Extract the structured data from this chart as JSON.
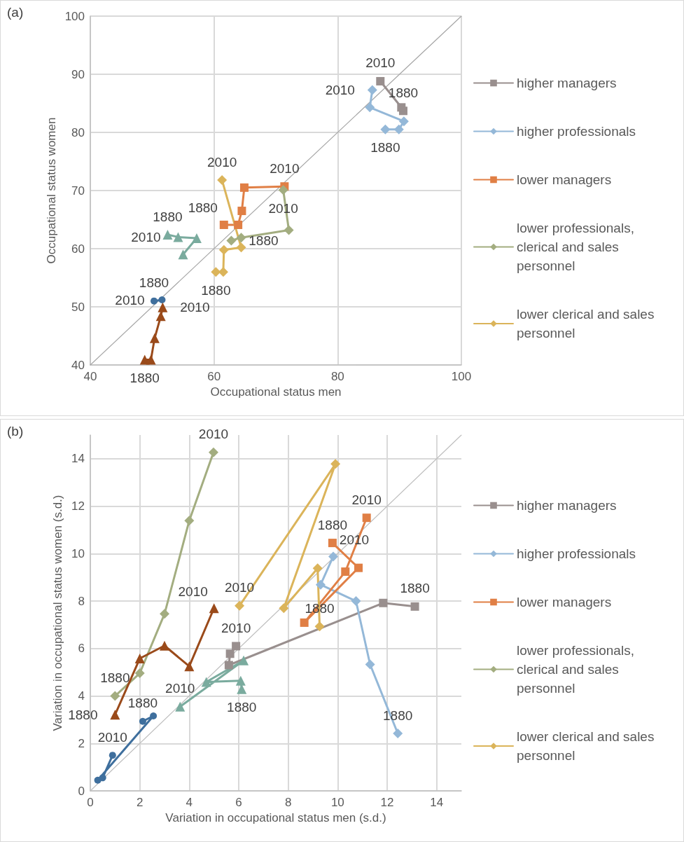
{
  "chart_data": [
    {
      "type": "line",
      "title": "(a)",
      "xlabel": "Occupational status men",
      "ylabel": "Occupational status women",
      "xlim": [
        40,
        100
      ],
      "ylim": [
        40,
        100
      ],
      "xticks": [
        40,
        60,
        80,
        100
      ],
      "yticks": [
        40,
        50,
        60,
        70,
        80,
        90,
        100
      ],
      "grid": true,
      "legend": "right",
      "series": [
        {
          "type": "line",
          "color": "#a6a6a6",
          "marker": "none",
          "x": [
            40,
            100
          ],
          "values": [
            40,
            100
          ]
        },
        {
          "name": "higher managers",
          "color": "#998f8e",
          "marker": "square",
          "x": [
            90.6,
            90.3,
            86.9
          ],
          "values": [
            83.7,
            84.3,
            88.8
          ]
        },
        {
          "name": "higher professionals",
          "color": "#94b8d8",
          "marker": "diamond",
          "x": [
            87.7,
            89.9,
            90.7,
            85.2,
            85.6
          ],
          "values": [
            80.5,
            80.5,
            81.9,
            84.3,
            87.3
          ]
        },
        {
          "name": "lower managers",
          "color": "#e07f45",
          "marker": "square",
          "x": [
            61.6,
            63.9,
            64.5,
            64.9,
            71.4
          ],
          "values": [
            64.1,
            64.1,
            66.5,
            70.5,
            70.7
          ]
        },
        {
          "name": "lower professionals, clerical and sales personnel",
          "color": "#a3ad80",
          "marker": "diamond",
          "x": [
            62.8,
            64.4,
            72.1,
            71.2
          ],
          "values": [
            61.4,
            61.9,
            63.2,
            70.1
          ]
        },
        {
          "name": "lower clerical and sales personnel",
          "color": "#dbb45a",
          "marker": "diamond",
          "x": [
            60.3,
            61.5,
            61.6,
            64.4,
            61.3
          ],
          "values": [
            56.0,
            56.0,
            59.8,
            60.2,
            71.8
          ]
        },
        {
          "color": "#3f6f9d",
          "marker": "circle",
          "x": [
            50.3,
            51.6
          ],
          "values": [
            51.0,
            51.2
          ]
        },
        {
          "color": "#7aab9e",
          "marker": "triangle",
          "x": [
            52.5,
            54.2,
            57.2,
            55.0
          ],
          "values": [
            62.4,
            62.0,
            61.8,
            59.0
          ]
        },
        {
          "color": "#9a4a1a",
          "marker": "triangle",
          "x": [
            48.8,
            49.8,
            50.4,
            51.4,
            51.7
          ],
          "values": [
            40.9,
            40.9,
            44.6,
            48.4,
            49.9
          ]
        }
      ],
      "annotations": [
        {
          "text": "1880",
          "x": 90.6,
          "y": 83.7
        },
        {
          "text": "2010",
          "x": 86.9,
          "y": 88.8
        },
        {
          "text": "1880",
          "x": 87.7,
          "y": 80.5
        },
        {
          "text": "2010",
          "x": 85.6,
          "y": 87.3
        },
        {
          "text": "1880",
          "x": 61.6,
          "y": 64.1
        },
        {
          "text": "2010",
          "x": 71.4,
          "y": 70.7
        },
        {
          "text": "1880",
          "x": 62.8,
          "y": 61.4
        },
        {
          "text": "2010",
          "x": 71.2,
          "y": 70.1
        },
        {
          "text": "1880",
          "x": 60.3,
          "y": 56.0
        },
        {
          "text": "2010",
          "x": 61.3,
          "y": 71.8
        },
        {
          "text": "1880",
          "x": 50.3,
          "y": 51.0
        },
        {
          "text": "2010",
          "x": 51.6,
          "y": 51.2
        },
        {
          "text": "1880",
          "x": 52.5,
          "y": 62.4
        },
        {
          "text": "2010",
          "x": 54.2,
          "y": 62.0
        },
        {
          "text": "1880",
          "x": 48.8,
          "y": 40.9
        },
        {
          "text": "2010",
          "x": 51.7,
          "y": 49.9
        }
      ]
    },
    {
      "type": "line",
      "title": "(b)",
      "xlabel": "Variation in occupational status men (s.d.)",
      "ylabel": "Variation in occupational status women (s.d.)",
      "xlim": [
        0,
        15
      ],
      "ylim": [
        0,
        15
      ],
      "xticks": [
        0,
        2,
        4,
        6,
        8,
        10,
        12,
        14
      ],
      "yticks": [
        0,
        2,
        4,
        6,
        8,
        10,
        12,
        14
      ],
      "grid": true,
      "legend": "right",
      "series": [
        {
          "type": "line",
          "color": "#bfbfbf",
          "marker": "none",
          "x": [
            0,
            15
          ],
          "values": [
            0,
            15
          ]
        },
        {
          "name": "higher managers",
          "color": "#998f8e",
          "marker": "square",
          "x": [
            13.12,
            11.84,
            5.6,
            5.65,
            5.89
          ],
          "values": [
            7.77,
            7.92,
            5.3,
            5.78,
            6.1
          ]
        },
        {
          "name": "higher professionals",
          "color": "#94b8d8",
          "marker": "diamond",
          "x": [
            12.43,
            11.31,
            10.74,
            9.31,
            9.82
          ],
          "values": [
            2.42,
            5.33,
            8.0,
            8.69,
            9.88
          ]
        },
        {
          "name": "lower managers",
          "color": "#e07f45",
          "marker": "square",
          "x": [
            9.79,
            10.84,
            8.65,
            10.31,
            11.17
          ],
          "values": [
            10.45,
            9.4,
            7.09,
            9.24,
            11.51
          ]
        },
        {
          "name": "lower professionals, clerical and sales personnel",
          "color": "#a3ad80",
          "marker": "diamond",
          "x": [
            1.0,
            2.0,
            3.0,
            4.0,
            4.98
          ],
          "values": [
            4.0,
            4.96,
            7.46,
            11.39,
            14.27
          ]
        },
        {
          "name": "lower clerical and sales personnel",
          "color": "#dbb45a",
          "marker": "diamond",
          "x": [
            9.27,
            9.19,
            7.82,
            9.91,
            6.03
          ],
          "values": [
            6.93,
            9.38,
            7.7,
            13.78,
            7.8
          ]
        },
        {
          "color": "#3f6f9d",
          "marker": "circle",
          "x": [
            2.12,
            2.55,
            0.3,
            0.5,
            0.9
          ],
          "values": [
            2.93,
            3.16,
            0.45,
            0.55,
            1.5
          ]
        },
        {
          "color": "#7aab9e",
          "marker": "triangle",
          "x": [
            6.12,
            6.08,
            4.69,
            6.2,
            3.63
          ],
          "values": [
            4.29,
            4.64,
            4.59,
            5.5,
            3.55
          ]
        },
        {
          "color": "#9a4a1a",
          "marker": "triangle",
          "x": [
            1.0,
            2.0,
            3.0,
            4.0,
            5.0
          ],
          "values": [
            3.21,
            5.58,
            6.12,
            5.25,
            7.7
          ]
        }
      ],
      "annotations": [
        {
          "text": "1880",
          "x": 13.12,
          "y": 7.77
        },
        {
          "text": "2010",
          "x": 5.89,
          "y": 6.1
        },
        {
          "text": "1880",
          "x": 12.43,
          "y": 2.42
        },
        {
          "text": "2010",
          "x": 9.82,
          "y": 9.88
        },
        {
          "text": "1880",
          "x": 9.79,
          "y": 10.45
        },
        {
          "text": "2010",
          "x": 11.17,
          "y": 11.51
        },
        {
          "text": "1880",
          "x": 1.0,
          "y": 4.0
        },
        {
          "text": "2010",
          "x": 4.98,
          "y": 14.27
        },
        {
          "text": "1880",
          "x": 9.27,
          "y": 6.93
        },
        {
          "text": "2010",
          "x": 6.03,
          "y": 7.8
        },
        {
          "text": "1880",
          "x": 2.12,
          "y": 2.93
        },
        {
          "text": "2010",
          "x": 0.9,
          "y": 1.5
        },
        {
          "text": "1880",
          "x": 6.12,
          "y": 4.29
        },
        {
          "text": "2010",
          "x": 3.63,
          "y": 3.55
        },
        {
          "text": "1880",
          "x": 1.0,
          "y": 3.21
        },
        {
          "text": "2010",
          "x": 5.0,
          "y": 7.7
        }
      ]
    }
  ]
}
